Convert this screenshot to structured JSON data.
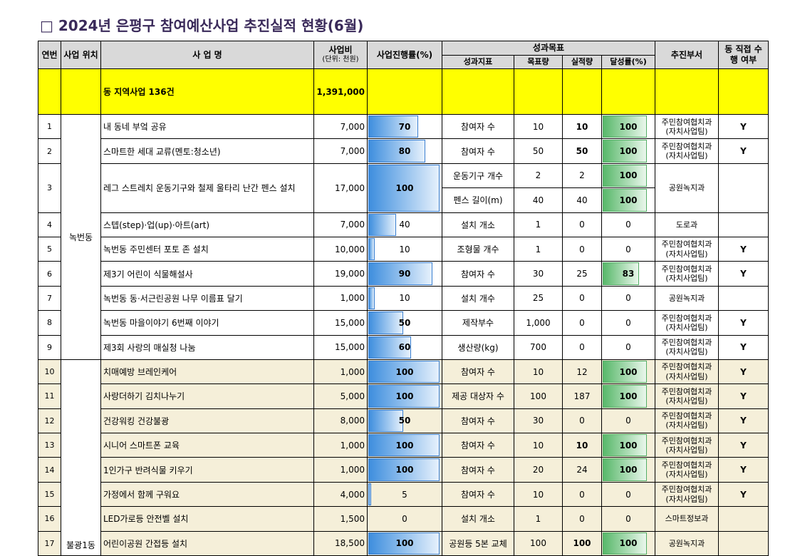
{
  "title": "□ 2024년 은평구 참여예산사업 추진실적 현황(6월)",
  "headers": {
    "no": "연번",
    "location": "사업 위치",
    "name": "사  업  명",
    "budget": "사업비",
    "budget_unit": "(단위: 천원)",
    "progress": "사업진행률(%)",
    "goals": "성과목표",
    "indicator": "성과지표",
    "target": "목표량",
    "actual": "실적량",
    "achievement": "달성률(%)",
    "dept": "추진부서",
    "direct": "동 직접 수행 여부"
  },
  "summary": {
    "name": "동 지역사업 136건",
    "budget": "1,391,000"
  },
  "locations": {
    "nokbeon": "녹번동",
    "bulgwang1": "불광1동"
  },
  "rows": [
    {
      "no": "1",
      "name": "내 동네 부엌 공유",
      "budget": "7,000",
      "progress": 70,
      "progress_label": "70",
      "indicator": "참여자 수",
      "target": "10",
      "actual": "10",
      "achievement": 100,
      "achievement_label": "100",
      "dept1": "주민참여협치과",
      "dept2": "(자치사업팀)",
      "direct": "Y"
    },
    {
      "no": "2",
      "name": "스마트한 세대 교류(멘토:청소년)",
      "budget": "7,000",
      "progress": 80,
      "progress_label": "80",
      "indicator": "참여자 수",
      "target": "50",
      "actual": "50",
      "achievement": 100,
      "achievement_label": "100",
      "dept1": "주민참여협치과",
      "dept2": "(자치사업팀)",
      "direct": "Y"
    },
    {
      "no": "3",
      "name": "레그 스트레치 운동기구와 철제 울타리 난간 펜스 설치",
      "budget": "17,000",
      "progress": 100,
      "progress_label": "100",
      "sub": [
        {
          "indicator": "운동기구 개수",
          "target": "2",
          "actual": "2",
          "achievement": 100,
          "achievement_label": "100"
        },
        {
          "indicator": "펜스 길이(m)",
          "target": "40",
          "actual": "40",
          "achievement": 100,
          "achievement_label": "100"
        }
      ],
      "dept1": "공원녹지과",
      "dept2": "",
      "direct": ""
    },
    {
      "no": "4",
      "name": "스텝(step)·업(up)·아트(art)",
      "budget": "7,000",
      "progress": 40,
      "progress_label": "40",
      "indicator": "설치 개소",
      "target": "1",
      "actual": "0",
      "achievement": 0,
      "achievement_label": "0",
      "dept1": "도로과",
      "dept2": "",
      "direct": ""
    },
    {
      "no": "5",
      "name": "녹번동 주민센터 포토 존 설치",
      "budget": "10,000",
      "progress": 10,
      "progress_label": "10",
      "indicator": "조형물 개수",
      "target": "1",
      "actual": "0",
      "achievement": 0,
      "achievement_label": "0",
      "dept1": "주민참여협치과",
      "dept2": "(자치사업팀)",
      "direct": "Y"
    },
    {
      "no": "6",
      "name": "제3기 어린이 식물해설사",
      "budget": "19,000",
      "progress": 90,
      "progress_label": "90",
      "indicator": "참여자 수",
      "target": "30",
      "actual": "25",
      "achievement": 83,
      "achievement_label": "83",
      "dept1": "주민참여협치과",
      "dept2": "(자치사업팀)",
      "direct": "Y"
    },
    {
      "no": "7",
      "name": "녹번동 동·서근린공원 나무 이름표 달기",
      "budget": "1,000",
      "progress": 10,
      "progress_label": "10",
      "indicator": "설치 개수",
      "target": "25",
      "actual": "0",
      "achievement": 0,
      "achievement_label": "0",
      "dept1": "공원녹지과",
      "dept2": "",
      "direct": ""
    },
    {
      "no": "8",
      "name": "녹번동 마을이야기 6번째 이야기",
      "budget": "15,000",
      "progress": 50,
      "progress_label": "50",
      "indicator": "제작부수",
      "target": "1,000",
      "actual": "0",
      "achievement": 0,
      "achievement_label": "0",
      "dept1": "주민참여협치과",
      "dept2": "(자치사업팀)",
      "direct": "Y"
    },
    {
      "no": "9",
      "name": "제3회 사랑의 매실청 나눔",
      "budget": "15,000",
      "progress": 60,
      "progress_label": "60",
      "indicator": "생산량(kg)",
      "target": "700",
      "actual": "0",
      "achievement": 0,
      "achievement_label": "0",
      "dept1": "주민참여협치과",
      "dept2": "(자치사업팀)",
      "direct": "Y"
    },
    {
      "no": "10",
      "name": "치매예방 브레인케어",
      "budget": "1,000",
      "progress": 100,
      "progress_label": "100",
      "indicator": "참여자 수",
      "target": "10",
      "actual": "12",
      "achievement": 100,
      "achievement_label": "100",
      "dept1": "주민참여협치과",
      "dept2": "(자치사업팀)",
      "direct": "Y"
    },
    {
      "no": "11",
      "name": "사랑더하기 김치나누기",
      "budget": "5,000",
      "progress": 100,
      "progress_label": "100",
      "indicator": "제공 대상자 수",
      "target": "100",
      "actual": "187",
      "achievement": 100,
      "achievement_label": "100",
      "dept1": "주민참여협치과",
      "dept2": "(자치사업팀)",
      "direct": "Y"
    },
    {
      "no": "12",
      "name": "건강워킹 건강불광",
      "budget": "8,000",
      "progress": 50,
      "progress_label": "50",
      "indicator": "참여자 수",
      "target": "30",
      "actual": "0",
      "achievement": 0,
      "achievement_label": "0",
      "dept1": "주민참여협치과",
      "dept2": "(자치사업팀)",
      "direct": "Y"
    },
    {
      "no": "13",
      "name": "시니어 스마트폰 교육",
      "budget": "1,000",
      "progress": 100,
      "progress_label": "100",
      "indicator": "참여자 수",
      "target": "10",
      "actual": "10",
      "achievement": 100,
      "achievement_label": "100",
      "dept1": "주민참여협치과",
      "dept2": "(자치사업팀)",
      "direct": "Y"
    },
    {
      "no": "14",
      "name": "1인가구 반려식물 키우기",
      "budget": "1,000",
      "progress": 100,
      "progress_label": "100",
      "indicator": "참여자 수",
      "target": "20",
      "actual": "24",
      "achievement": 100,
      "achievement_label": "100",
      "dept1": "주민참여협치과",
      "dept2": "(자치사업팀)",
      "direct": "Y"
    },
    {
      "no": "15",
      "name": "가정에서 함께 구워요",
      "budget": "4,000",
      "progress": 5,
      "progress_label": "5",
      "indicator": "참여자 수",
      "target": "10",
      "actual": "0",
      "achievement": 0,
      "achievement_label": "0",
      "dept1": "주민참여협치과",
      "dept2": "(자치사업팀)",
      "direct": "Y"
    },
    {
      "no": "16",
      "name": "LED가로등 안전벨 설치",
      "budget": "1,500",
      "progress": 0,
      "progress_label": "0",
      "indicator": "설치 개소",
      "target": "1",
      "actual": "0",
      "achievement": 0,
      "achievement_label": "0",
      "dept1": "스마트정보과",
      "dept2": "",
      "direct": ""
    },
    {
      "no": "17",
      "name": "어린이공원 간접등 설치",
      "budget": "18,500",
      "progress": 100,
      "progress_label": "100",
      "indicator": "공원등 5본 교체",
      "target": "100",
      "actual": "100",
      "achievement": 100,
      "achievement_label": "100",
      "dept1": "공원녹지과",
      "dept2": "",
      "direct": ""
    }
  ]
}
